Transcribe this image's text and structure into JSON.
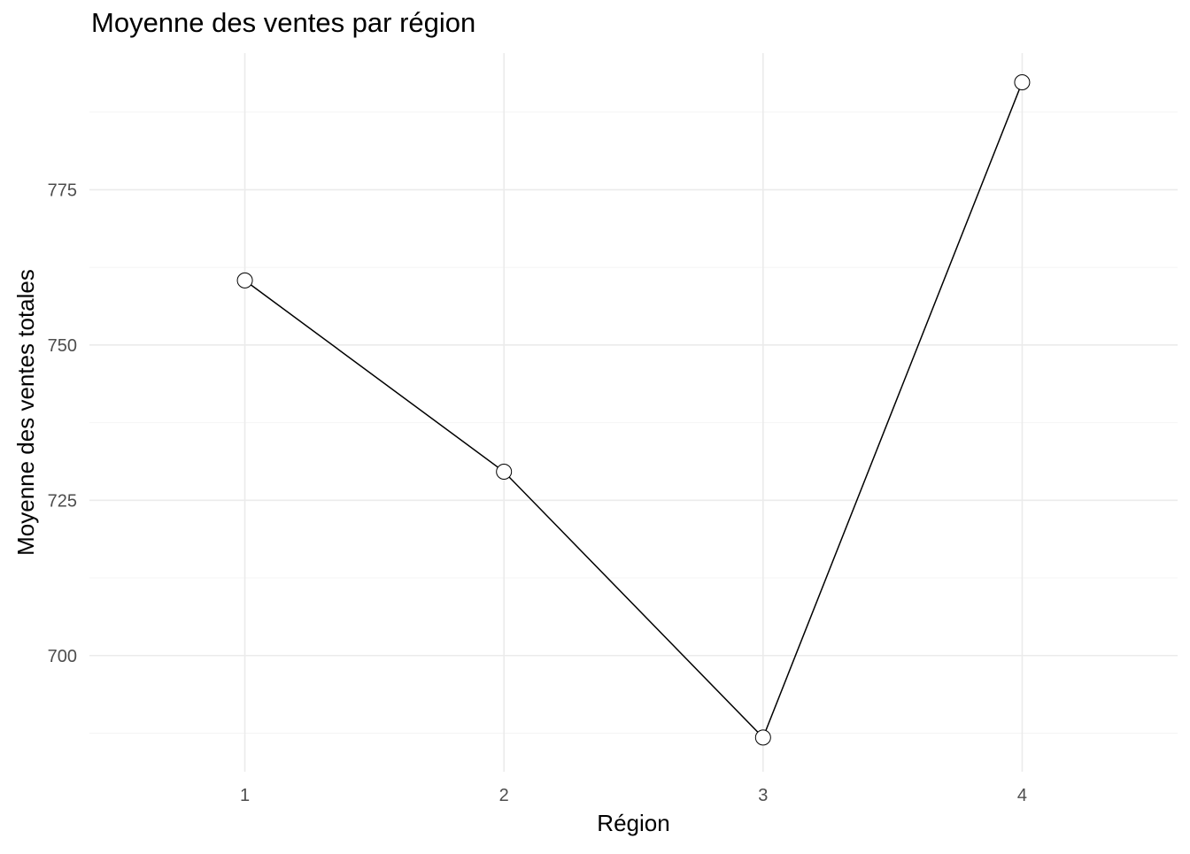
{
  "chart_data": {
    "type": "line",
    "title": "Moyenne des ventes par région",
    "xlabel": "Région",
    "ylabel": "Moyenne des ventes totales",
    "x": [
      1,
      2,
      3,
      4
    ],
    "x_tick_labels": [
      "1",
      "2",
      "3",
      "4"
    ],
    "xlim": [
      0.4,
      4.6
    ],
    "y_ticks": [
      700,
      725,
      750,
      775
    ],
    "y_tick_labels": [
      "700",
      "725",
      "750",
      "775"
    ],
    "ylim": [
      681.3,
      797.0
    ],
    "series": [
      {
        "values": [
          760.4,
          729.6,
          686.8,
          792.3
        ]
      }
    ],
    "grid": true,
    "legend": "none",
    "colors": {
      "line": "#000000",
      "point_fill": "#ffffff",
      "point_stroke": "#000000",
      "grid_major": "#ebebeb",
      "grid_minor": "#f4f4f4",
      "tick_label": "#4d4d4d",
      "title": "#000000"
    }
  }
}
